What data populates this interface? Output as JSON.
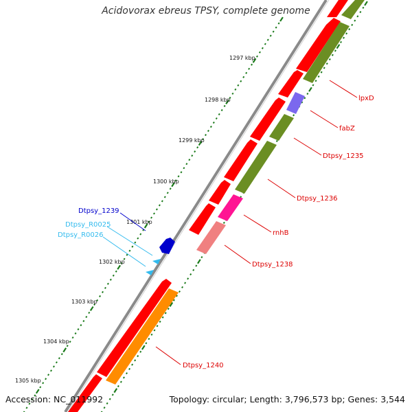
{
  "title": "Acidovorax ebreus TPSY, complete genome",
  "footer": {
    "accession": "Accession: NC_011992",
    "topology": "Topology: circular; Length: 3,796,573 bp; Genes: 3,544"
  },
  "ticks": [
    {
      "label": "1297 kbp"
    },
    {
      "label": "1298 kbp"
    },
    {
      "label": "1299 kbp"
    },
    {
      "label": "1300 kbp"
    },
    {
      "label": "1301 kbp"
    },
    {
      "label": "1302 kbp"
    },
    {
      "label": "1303 kbp"
    },
    {
      "label": "1304 kbp"
    },
    {
      "label": "1305 kbp"
    }
  ],
  "gene_labels": [
    {
      "name": "lpxD",
      "color": "#dd0000"
    },
    {
      "name": "fabZ",
      "color": "#dd0000"
    },
    {
      "name": "Dtpsy_1235",
      "color": "#dd0000"
    },
    {
      "name": "Dtpsy_1236",
      "color": "#dd0000"
    },
    {
      "name": "rnhB",
      "color": "#dd0000"
    },
    {
      "name": "Dtpsy_1238",
      "color": "#dd0000"
    },
    {
      "name": "Dtpsy_1240",
      "color": "#dd0000"
    },
    {
      "name": "Dtpsy_1239",
      "color": "#0000cc"
    },
    {
      "name": "Dtpsy_R0025",
      "color": "#33bbee"
    },
    {
      "name": "Dtpsy_R0026",
      "color": "#33bbee"
    }
  ],
  "colors": {
    "cds": "#ff0000",
    "cog_green": "#6b8e23",
    "cog_purple": "#7b68ee",
    "cog_magenta": "#ff1493",
    "cog_pink": "#f08080",
    "cog_orange": "#ff8c00",
    "reverse_gene": "#0000cc",
    "rna": "#33bbee",
    "tick_color": "#1a7a1a",
    "backbone": "#888888"
  }
}
